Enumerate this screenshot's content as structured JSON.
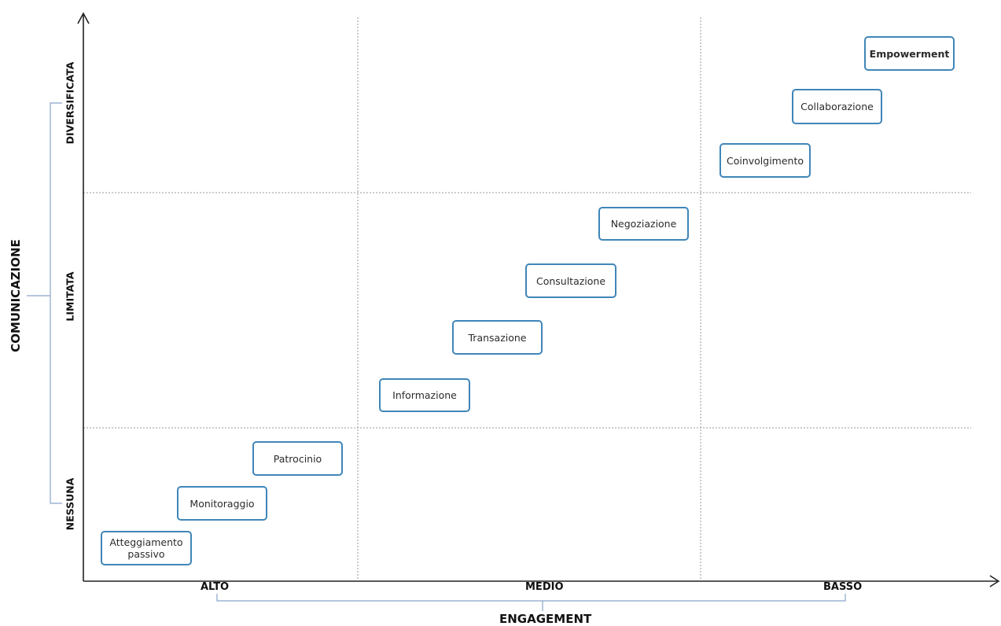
{
  "diagram": {
    "y_axis": {
      "title": "COMUNICAZIONE",
      "levels": [
        "NESSUNA",
        "LIMITATA",
        "DIVERSIFICATA"
      ]
    },
    "x_axis": {
      "title": "ENGAGEMENT",
      "levels": [
        "ALTO",
        "MEDIO",
        "BASSO"
      ]
    },
    "stages": [
      {
        "label": "Atteggiamento\npassivo",
        "emphasis": false
      },
      {
        "label": "Monitoraggio",
        "emphasis": false
      },
      {
        "label": "Patrocinio",
        "emphasis": false
      },
      {
        "label": "Informazione",
        "emphasis": false
      },
      {
        "label": "Transazione",
        "emphasis": false
      },
      {
        "label": "Consultazione",
        "emphasis": false
      },
      {
        "label": "Negoziazione",
        "emphasis": false
      },
      {
        "label": "Coinvolgimento",
        "emphasis": false
      },
      {
        "label": "Collaborazione",
        "emphasis": false
      },
      {
        "label": "Empowerment",
        "emphasis": true
      }
    ],
    "colors": {
      "box_border": "#3f86b9",
      "axis": "#222222",
      "grid": "#9a9a9a",
      "bracket": "#8aa3c9"
    }
  }
}
